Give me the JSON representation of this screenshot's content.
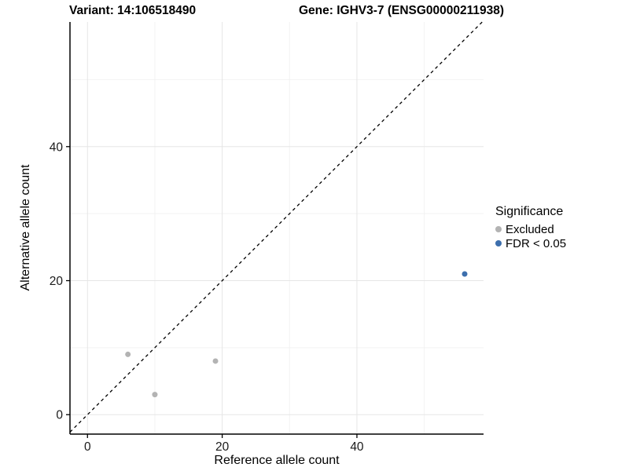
{
  "header": {
    "variant_title": "Variant: 14:106518490",
    "gene_title": "Gene: IGHV3-7 (ENSG00000211938)"
  },
  "chart_data": {
    "type": "scatter",
    "xlabel": "Reference allele count",
    "ylabel": "Alternative allele count",
    "xlim": [
      -2.6,
      58.8
    ],
    "ylim": [
      -2.9,
      58.6
    ],
    "x_ticks_major": [
      0,
      20,
      40
    ],
    "x_ticks_minor": [
      10,
      30,
      50
    ],
    "y_ticks_major": [
      0,
      20,
      40
    ],
    "y_ticks_minor": [
      10,
      30,
      50
    ],
    "grid": true,
    "identity_line": {
      "style": "dashed",
      "slope": 1,
      "intercept": 0
    },
    "series": [
      {
        "name": "Excluded",
        "color": "#b3b3b3",
        "points": [
          {
            "x": 6,
            "y": 9
          },
          {
            "x": 10,
            "y": 3
          },
          {
            "x": 19,
            "y": 8
          }
        ]
      },
      {
        "name": "FDR < 0.05",
        "color": "#3d6fad",
        "points": [
          {
            "x": 56,
            "y": 21
          }
        ]
      }
    ],
    "legend": {
      "title": "Significance",
      "position": "right",
      "entries": [
        {
          "label": "Excluded",
          "color": "#b3b3b3"
        },
        {
          "label": "FDR < 0.05",
          "color": "#3d6fad"
        }
      ]
    },
    "colors": {
      "axis_line": "#000000",
      "tick_text": "#1a1a1a",
      "grid_major": "#e6e6e6",
      "grid_minor": "#f2f2f2",
      "identity_line": "#000000"
    }
  }
}
